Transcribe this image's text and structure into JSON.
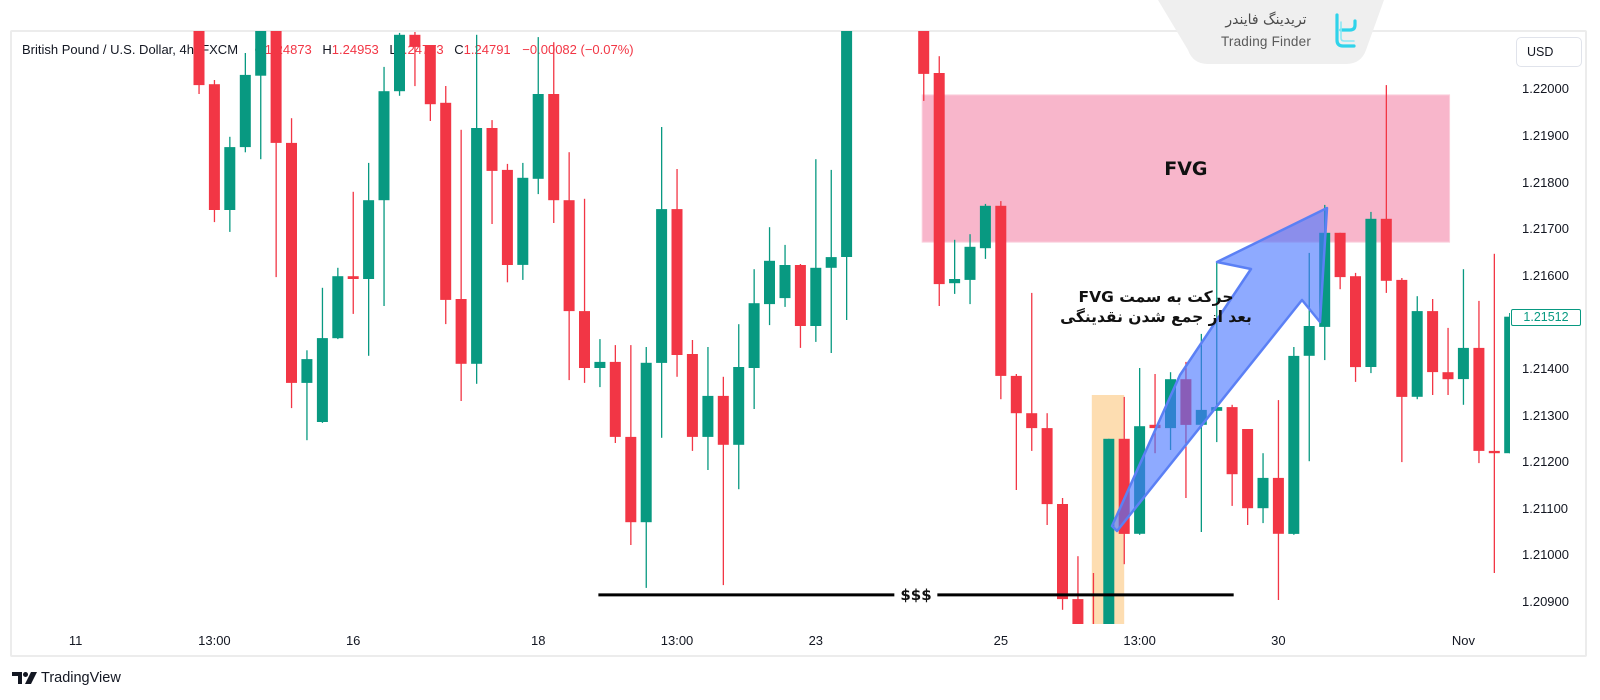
{
  "header": {
    "symbol": "British Pound / U.S. Dollar, 4h, FXCM",
    "ohlc": [
      {
        "label": "O",
        "value": "1.24873"
      },
      {
        "label": "H",
        "value": "1.24953"
      },
      {
        "label": "L",
        "value": "1.24773"
      },
      {
        "label": "C",
        "value": "1.24791"
      }
    ],
    "change": "−0.00082 (−0.07%)"
  },
  "brand": {
    "persian": "تریدینگ فایندر",
    "english": "Trading Finder",
    "icon": "trading-finder-logo-icon"
  },
  "price_axis": {
    "currency_button": "USD",
    "last_price": "1.21512"
  },
  "footer": {
    "logo_text": "TradingView",
    "logo_icon": "tradingview-logo-icon"
  },
  "colors": {
    "up": "#089981",
    "down": "#f23645",
    "fvg_fill": "#f8b6cb",
    "highlight_fill": "#fdd9a8",
    "arrow_fill": "rgba(72,118,255,0.62)",
    "arrow_stroke": "#5b80f5",
    "liquidity_line": "#000000"
  },
  "annotations": {
    "fvg_label": "FVG",
    "liquidity_label": "$$$",
    "note_line1": "حرکت به سمت FVG",
    "note_line2": "بعد از جمع شدن نقدینگی"
  },
  "chart_data": {
    "type": "candlestick",
    "title": "British Pound / U.S. Dollar, 4h, FXCM",
    "xlabel": "",
    "ylabel": "USD",
    "ylim": [
      1.2085,
      1.2213
    ],
    "grid": false,
    "last_price": 1.21512,
    "y_ticks": [
      1.22,
      1.219,
      1.218,
      1.217,
      1.216,
      1.215,
      1.214,
      1.213,
      1.212,
      1.211,
      1.21,
      1.209
    ],
    "y_ticks_hidden": [
      1.215
    ],
    "x_ticks": [
      {
        "label": "11",
        "index": -8
      },
      {
        "label": "13:00",
        "index": 1
      },
      {
        "label": "16",
        "index": 10
      },
      {
        "label": "18",
        "index": 22
      },
      {
        "label": "13:00",
        "index": 31
      },
      {
        "label": "23",
        "index": 40
      },
      {
        "label": "25",
        "index": 52
      },
      {
        "label": "13:00",
        "index": 61
      },
      {
        "label": "30",
        "index": 70
      },
      {
        "label": "Nov",
        "index": 82
      }
    ],
    "candle_format": [
      "open",
      "high",
      "low",
      "close"
    ],
    "candles": [
      [
        1.2218,
        1.222,
        1.2199,
        1.22009
      ],
      [
        1.22011,
        1.2202,
        1.21715,
        1.21741
      ],
      [
        1.21741,
        1.21898,
        1.21694,
        1.21876
      ],
      [
        1.21876,
        1.22078,
        1.21865,
        1.22031
      ],
      [
        1.22029,
        1.2219,
        1.2185,
        1.2216
      ],
      [
        1.2217,
        1.2219,
        1.21597,
        1.21885
      ],
      [
        1.21885,
        1.21938,
        1.21316,
        1.2137
      ],
      [
        1.2137,
        1.2144,
        1.21247,
        1.21421
      ],
      [
        1.21286,
        1.21574,
        1.21284,
        1.21466
      ],
      [
        1.21466,
        1.21617,
        1.21464,
        1.21599
      ],
      [
        1.21599,
        1.2178,
        1.21518,
        1.21593
      ],
      [
        1.21593,
        1.21842,
        1.21428,
        1.21762
      ],
      [
        1.21762,
        1.22048,
        1.21535,
        1.21996
      ],
      [
        1.21996,
        1.22121,
        1.21986,
        1.22117
      ],
      [
        1.22117,
        1.22123,
        1.22007,
        1.22091
      ],
      [
        1.22095,
        1.22095,
        1.21932,
        1.21968
      ],
      [
        1.21971,
        1.22007,
        1.21496,
        1.21548
      ],
      [
        1.2155,
        1.21913,
        1.21331,
        1.21411
      ],
      [
        1.21411,
        1.22117,
        1.21368,
        1.21917
      ],
      [
        1.21917,
        1.21934,
        1.21711,
        1.21825
      ],
      [
        1.21827,
        1.2184,
        1.21586,
        1.21623
      ],
      [
        1.21623,
        1.21842,
        1.21591,
        1.2181
      ],
      [
        1.21808,
        1.22112,
        1.21775,
        1.2199
      ],
      [
        1.2199,
        1.22101,
        1.21713,
        1.21762
      ],
      [
        1.21762,
        1.21865,
        1.21376,
        1.21524
      ],
      [
        1.21524,
        1.21765,
        1.2137,
        1.21402
      ],
      [
        1.21402,
        1.21464,
        1.21361,
        1.21415
      ],
      [
        1.21415,
        1.21451,
        1.21241,
        1.21254
      ],
      [
        1.21254,
        1.21451,
        1.21022,
        1.21071
      ],
      [
        1.21071,
        1.21447,
        1.2093,
        1.21413
      ],
      [
        1.21413,
        1.21919,
        1.21252,
        1.21743
      ],
      [
        1.21743,
        1.21829,
        1.21383,
        1.2143
      ],
      [
        1.21432,
        1.21462,
        1.21224,
        1.21254
      ],
      [
        1.21254,
        1.21447,
        1.21183,
        1.21342
      ],
      [
        1.21342,
        1.21383,
        1.20936,
        1.21237
      ],
      [
        1.21237,
        1.21496,
        1.21142,
        1.21404
      ],
      [
        1.21402,
        1.21614,
        1.21314,
        1.21541
      ],
      [
        1.21539,
        1.21704,
        1.21494,
        1.21632
      ],
      [
        1.21552,
        1.21666,
        1.21533,
        1.21623
      ],
      [
        1.21623,
        1.21625,
        1.21445,
        1.21492
      ],
      [
        1.21492,
        1.2185,
        1.21458,
        1.21617
      ],
      [
        1.21617,
        1.21827,
        1.21434,
        1.2164
      ],
      [
        1.2164,
        1.2225,
        1.21505,
        1.2223
      ],
      null,
      null,
      null,
      null,
      [
        1.222,
        1.2223,
        1.21975,
        1.22033
      ],
      [
        1.22035,
        1.22071,
        1.21535,
        1.21582
      ],
      [
        1.21584,
        1.21677,
        1.21561,
        1.21593
      ],
      [
        1.21591,
        1.21689,
        1.21539,
        1.21662
      ],
      [
        1.21659,
        1.21754,
        1.21636,
        1.2175
      ],
      [
        1.2175,
        1.2176,
        1.21335,
        1.21385
      ],
      [
        1.21385,
        1.21389,
        1.2114,
        1.21305
      ],
      [
        1.21305,
        1.21563,
        1.21224,
        1.21273
      ],
      [
        1.21273,
        1.21305,
        1.21065,
        1.2111
      ],
      [
        1.2111,
        1.21123,
        1.20883,
        1.20906
      ],
      [
        1.20906,
        1.20998,
        1.208,
        1.2083
      ],
      [
        1.2083,
        1.20962,
        1.2077,
        1.2079
      ],
      [
        1.208,
        1.2125,
        1.2078,
        1.2125
      ],
      [
        1.2125,
        1.2134,
        1.20981,
        1.21046
      ],
      [
        1.21046,
        1.21402,
        1.21044,
        1.21277
      ],
      [
        1.2128,
        1.21389,
        1.21219,
        1.21273
      ],
      [
        1.21273,
        1.21393,
        1.21226,
        1.21378
      ],
      [
        1.21378,
        1.21415,
        1.21123,
        1.2128
      ],
      [
        1.2128,
        1.21475,
        1.2105,
        1.21312
      ],
      [
        1.2131,
        1.21629,
        1.21243,
        1.21318
      ],
      [
        1.21318,
        1.21323,
        1.21106,
        1.21174
      ],
      [
        1.21271,
        1.21271,
        1.21065,
        1.21101
      ],
      [
        1.21101,
        1.21219,
        1.21069,
        1.21166
      ],
      [
        1.21166,
        1.21333,
        1.20904,
        1.21046
      ],
      [
        1.21046,
        1.21447,
        1.21044,
        1.21428
      ],
      [
        1.21428,
        1.21649,
        1.21202,
        1.21492
      ],
      [
        1.2149,
        1.21752,
        1.21419,
        1.21692
      ],
      [
        1.21692,
        1.21692,
        1.21571,
        1.21597
      ],
      [
        1.21599,
        1.21606,
        1.21372,
        1.21404
      ],
      [
        1.21404,
        1.21737,
        1.21391,
        1.21722
      ],
      [
        1.21722,
        1.22009,
        1.21563,
        1.21589
      ],
      [
        1.21591,
        1.21595,
        1.212,
        1.2134
      ],
      [
        1.2134,
        1.21556,
        1.21335,
        1.21524
      ],
      [
        1.21524,
        1.2155,
        1.21344,
        1.21393
      ],
      [
        1.21393,
        1.21488,
        1.21344,
        1.21378
      ],
      [
        1.21378,
        1.21614,
        1.21323,
        1.21445
      ],
      [
        1.21445,
        1.21546,
        1.21198,
        1.21224
      ],
      [
        1.21224,
        1.21647,
        1.20962,
        1.21219
      ],
      [
        1.21219,
        1.2152,
        1.21219,
        1.21512
      ]
    ],
    "annotations": {
      "fvg": {
        "label": "FVG",
        "top": 1.21988,
        "bottom": 1.21672,
        "from_index": 46.9,
        "to_index": 81.1
      },
      "liquidity_line": {
        "label": "$$$",
        "price": 1.20915,
        "from_index": 25.9,
        "to_index": 67.1
      },
      "sweep_highlight": {
        "top": 1.21344,
        "from_index": 57.9,
        "to_index": 60.0
      },
      "arrow": {
        "direction": "up-right",
        "from_index": 58.8,
        "to_index": 73.2,
        "target": "FVG"
      },
      "note": [
        "حرکت به سمت FVG",
        "بعد از جمع شدن نقدینگی"
      ]
    }
  }
}
